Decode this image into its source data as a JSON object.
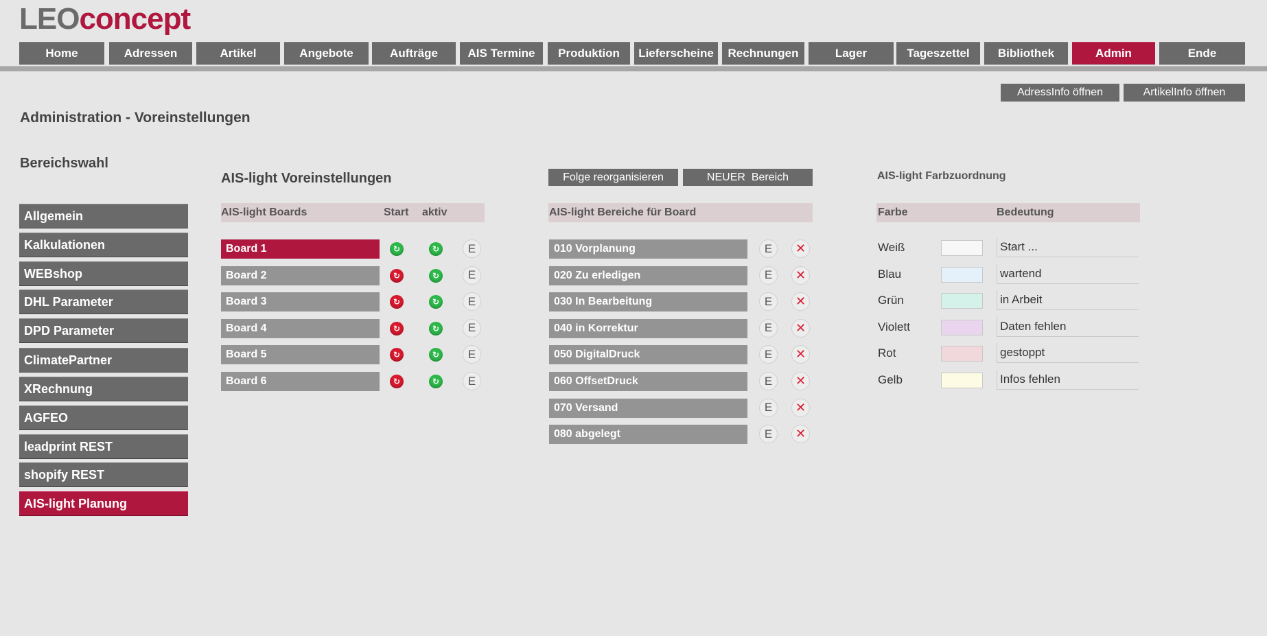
{
  "logo": {
    "part1": "LEO",
    "part2": "concept"
  },
  "nav": {
    "items": [
      "Home",
      "Adressen",
      "Artikel",
      "Angebote",
      "Aufträge",
      "AIS Termine",
      "Produktion",
      "Lieferscheine",
      "Rechnungen",
      "Lager",
      "Tageszettel",
      "Bibliothek",
      "Admin",
      "Ende"
    ],
    "active": "Admin"
  },
  "info_buttons": {
    "address": "AdressInfo öffnen",
    "article": "ArtikelInfo öffnen"
  },
  "page_title": "Administration - Voreinstellungen",
  "sidebar": {
    "title": "Bereichswahl",
    "items": [
      "Allgemein",
      "Kalkulationen",
      "WEBshop",
      "DHL Parameter",
      "DPD Parameter",
      "ClimatePartner",
      "XRechnung",
      "AGFEO",
      "leadprint REST",
      "shopify REST",
      "AIS-light Planung"
    ],
    "active": "AIS-light Planung"
  },
  "boards_section": {
    "title": "AIS-light Voreinstellungen",
    "header": {
      "boards": "AIS-light Boards",
      "start": "Start",
      "active": "aktiv"
    },
    "edit_label": "E",
    "boards": [
      {
        "name": "Board 1",
        "start": "green",
        "active": "green",
        "selected": true
      },
      {
        "name": "Board 2",
        "start": "red",
        "active": "green",
        "selected": false
      },
      {
        "name": "Board 3",
        "start": "red",
        "active": "green",
        "selected": false
      },
      {
        "name": "Board 4",
        "start": "red",
        "active": "green",
        "selected": false
      },
      {
        "name": "Board 5",
        "start": "red",
        "active": "green",
        "selected": false
      },
      {
        "name": "Board 6",
        "start": "red",
        "active": "green",
        "selected": false
      }
    ]
  },
  "areas_section": {
    "reorganize_button": "Folge reorganisieren",
    "new_area_button": "NEUER  Bereich",
    "header": "AIS-light Bereiche für Board",
    "edit_label": "E",
    "delete_label": "✕",
    "areas": [
      "010 Vorplanung",
      "020 Zu erledigen",
      "030 In Bearbeitung",
      "040 in Korrektur",
      "050 DigitalDruck",
      "060 OffsetDruck",
      "070 Versand",
      "080 abgelegt"
    ]
  },
  "colors_section": {
    "title": "AIS-light Farbzuordnung",
    "header": {
      "color": "Farbe",
      "meaning": "Bedeutung"
    },
    "rows": [
      {
        "label": "Weiß",
        "swatch": "#f7f7f7",
        "meaning": "Start ..."
      },
      {
        "label": "Blau",
        "swatch": "#e4f1fb",
        "meaning": "wartend"
      },
      {
        "label": "Grün",
        "swatch": "#d4f2ea",
        "meaning": "in Arbeit"
      },
      {
        "label": "Violett",
        "swatch": "#e9d6ee",
        "meaning": "Daten fehlen"
      },
      {
        "label": "Rot",
        "swatch": "#f1d8da",
        "meaning": "gestoppt"
      },
      {
        "label": "Gelb",
        "swatch": "#fdfbe4",
        "meaning": "Infos fehlen"
      }
    ]
  },
  "colors": {
    "accent": "#b0173f",
    "button": "#6a6a6a",
    "row": "#949494",
    "header_bg": "#dccfd2"
  }
}
